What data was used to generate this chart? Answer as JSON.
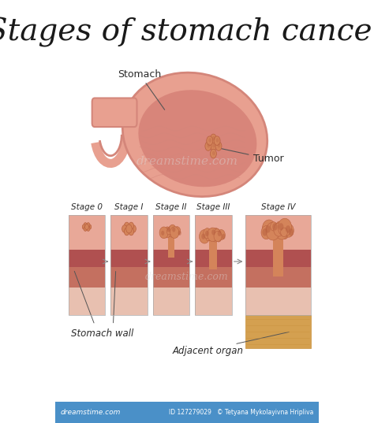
{
  "title": "Stages of stomach cancer",
  "title_fontsize": 28,
  "title_color": "#1a1a1a",
  "background_color": "#ffffff",
  "text_color": "#2a2a2a",
  "labels": {
    "stomach": "Stomach",
    "tumor": "Tumor",
    "stage0": "Stage 0",
    "stage1": "Stage I",
    "stage2": "Stage II",
    "stage3": "Stage III",
    "stage4": "Stage IV",
    "stomach_wall": "Stomach wall",
    "adjacent_organ": "Adjacent organ"
  },
  "colors": {
    "stomach_outer": "#e8a090",
    "stomach_inner": "#d4867a",
    "stomach_lining": "#c96b65",
    "stomach_bg": "#e09080",
    "tumor_main": "#d4845a",
    "tumor_dark": "#b86040",
    "layer1": "#e8a898",
    "layer2": "#c47060",
    "layer3": "#b05050",
    "layer4": "#e8c0b0",
    "adjacent": "#d4a050",
    "annotation_line": "#555555",
    "footer_bg": "#4a90c8"
  },
  "footer": {
    "left": "dreamstime.com",
    "right_id": "127279029",
    "right_credit": "Tetyana Mykolayivna Hripliva"
  }
}
